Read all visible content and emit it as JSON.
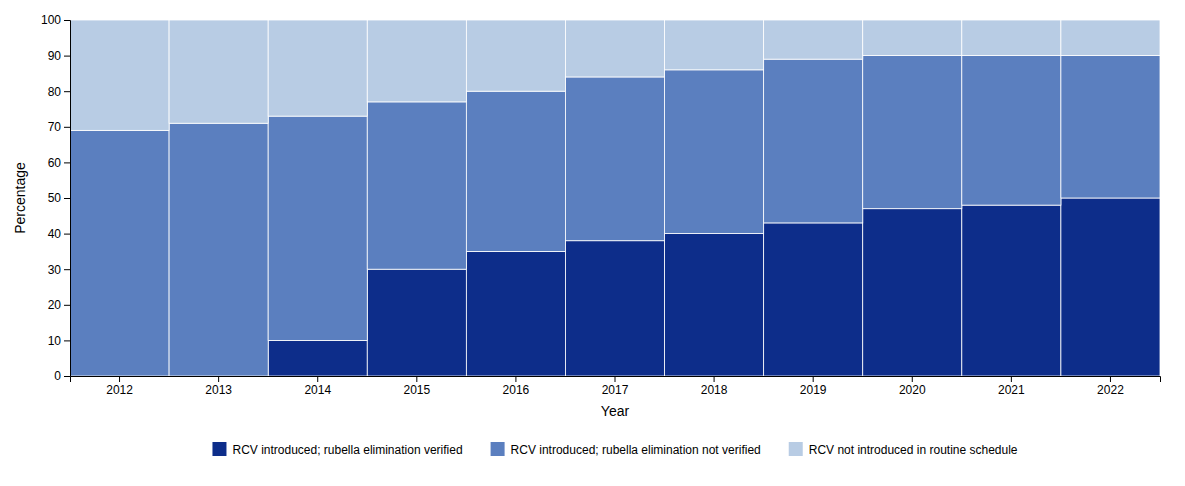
{
  "chart_data": {
    "type": "bar",
    "categories": [
      "2012",
      "2013",
      "2014",
      "2015",
      "2016",
      "2017",
      "2018",
      "2019",
      "2020",
      "2021",
      "2022"
    ],
    "series": [
      {
        "name": "RCV introduced; rubella elimination verified",
        "color": "#0d2d8a",
        "values": [
          0,
          0,
          10,
          30,
          35,
          38,
          40,
          43,
          47,
          48,
          50
        ]
      },
      {
        "name": "RCV introduced; rubella elimination not verified",
        "color": "#5b7fbf",
        "values": [
          69,
          71,
          63,
          47,
          45,
          46,
          46,
          46,
          43,
          42,
          40
        ]
      },
      {
        "name": "RCV not introduced in routine schedule",
        "color": "#b8cce4",
        "values": [
          31,
          29,
          27,
          23,
          20,
          16,
          14,
          11,
          10,
          10,
          10
        ]
      }
    ],
    "stacked": true,
    "xlabel": "Year",
    "ylabel": "Percentage",
    "ylim": [
      0,
      100
    ],
    "yticks": [
      0,
      10,
      20,
      30,
      40,
      50,
      60,
      70,
      80,
      90,
      100
    ],
    "grid": false,
    "legend": "bottom"
  }
}
